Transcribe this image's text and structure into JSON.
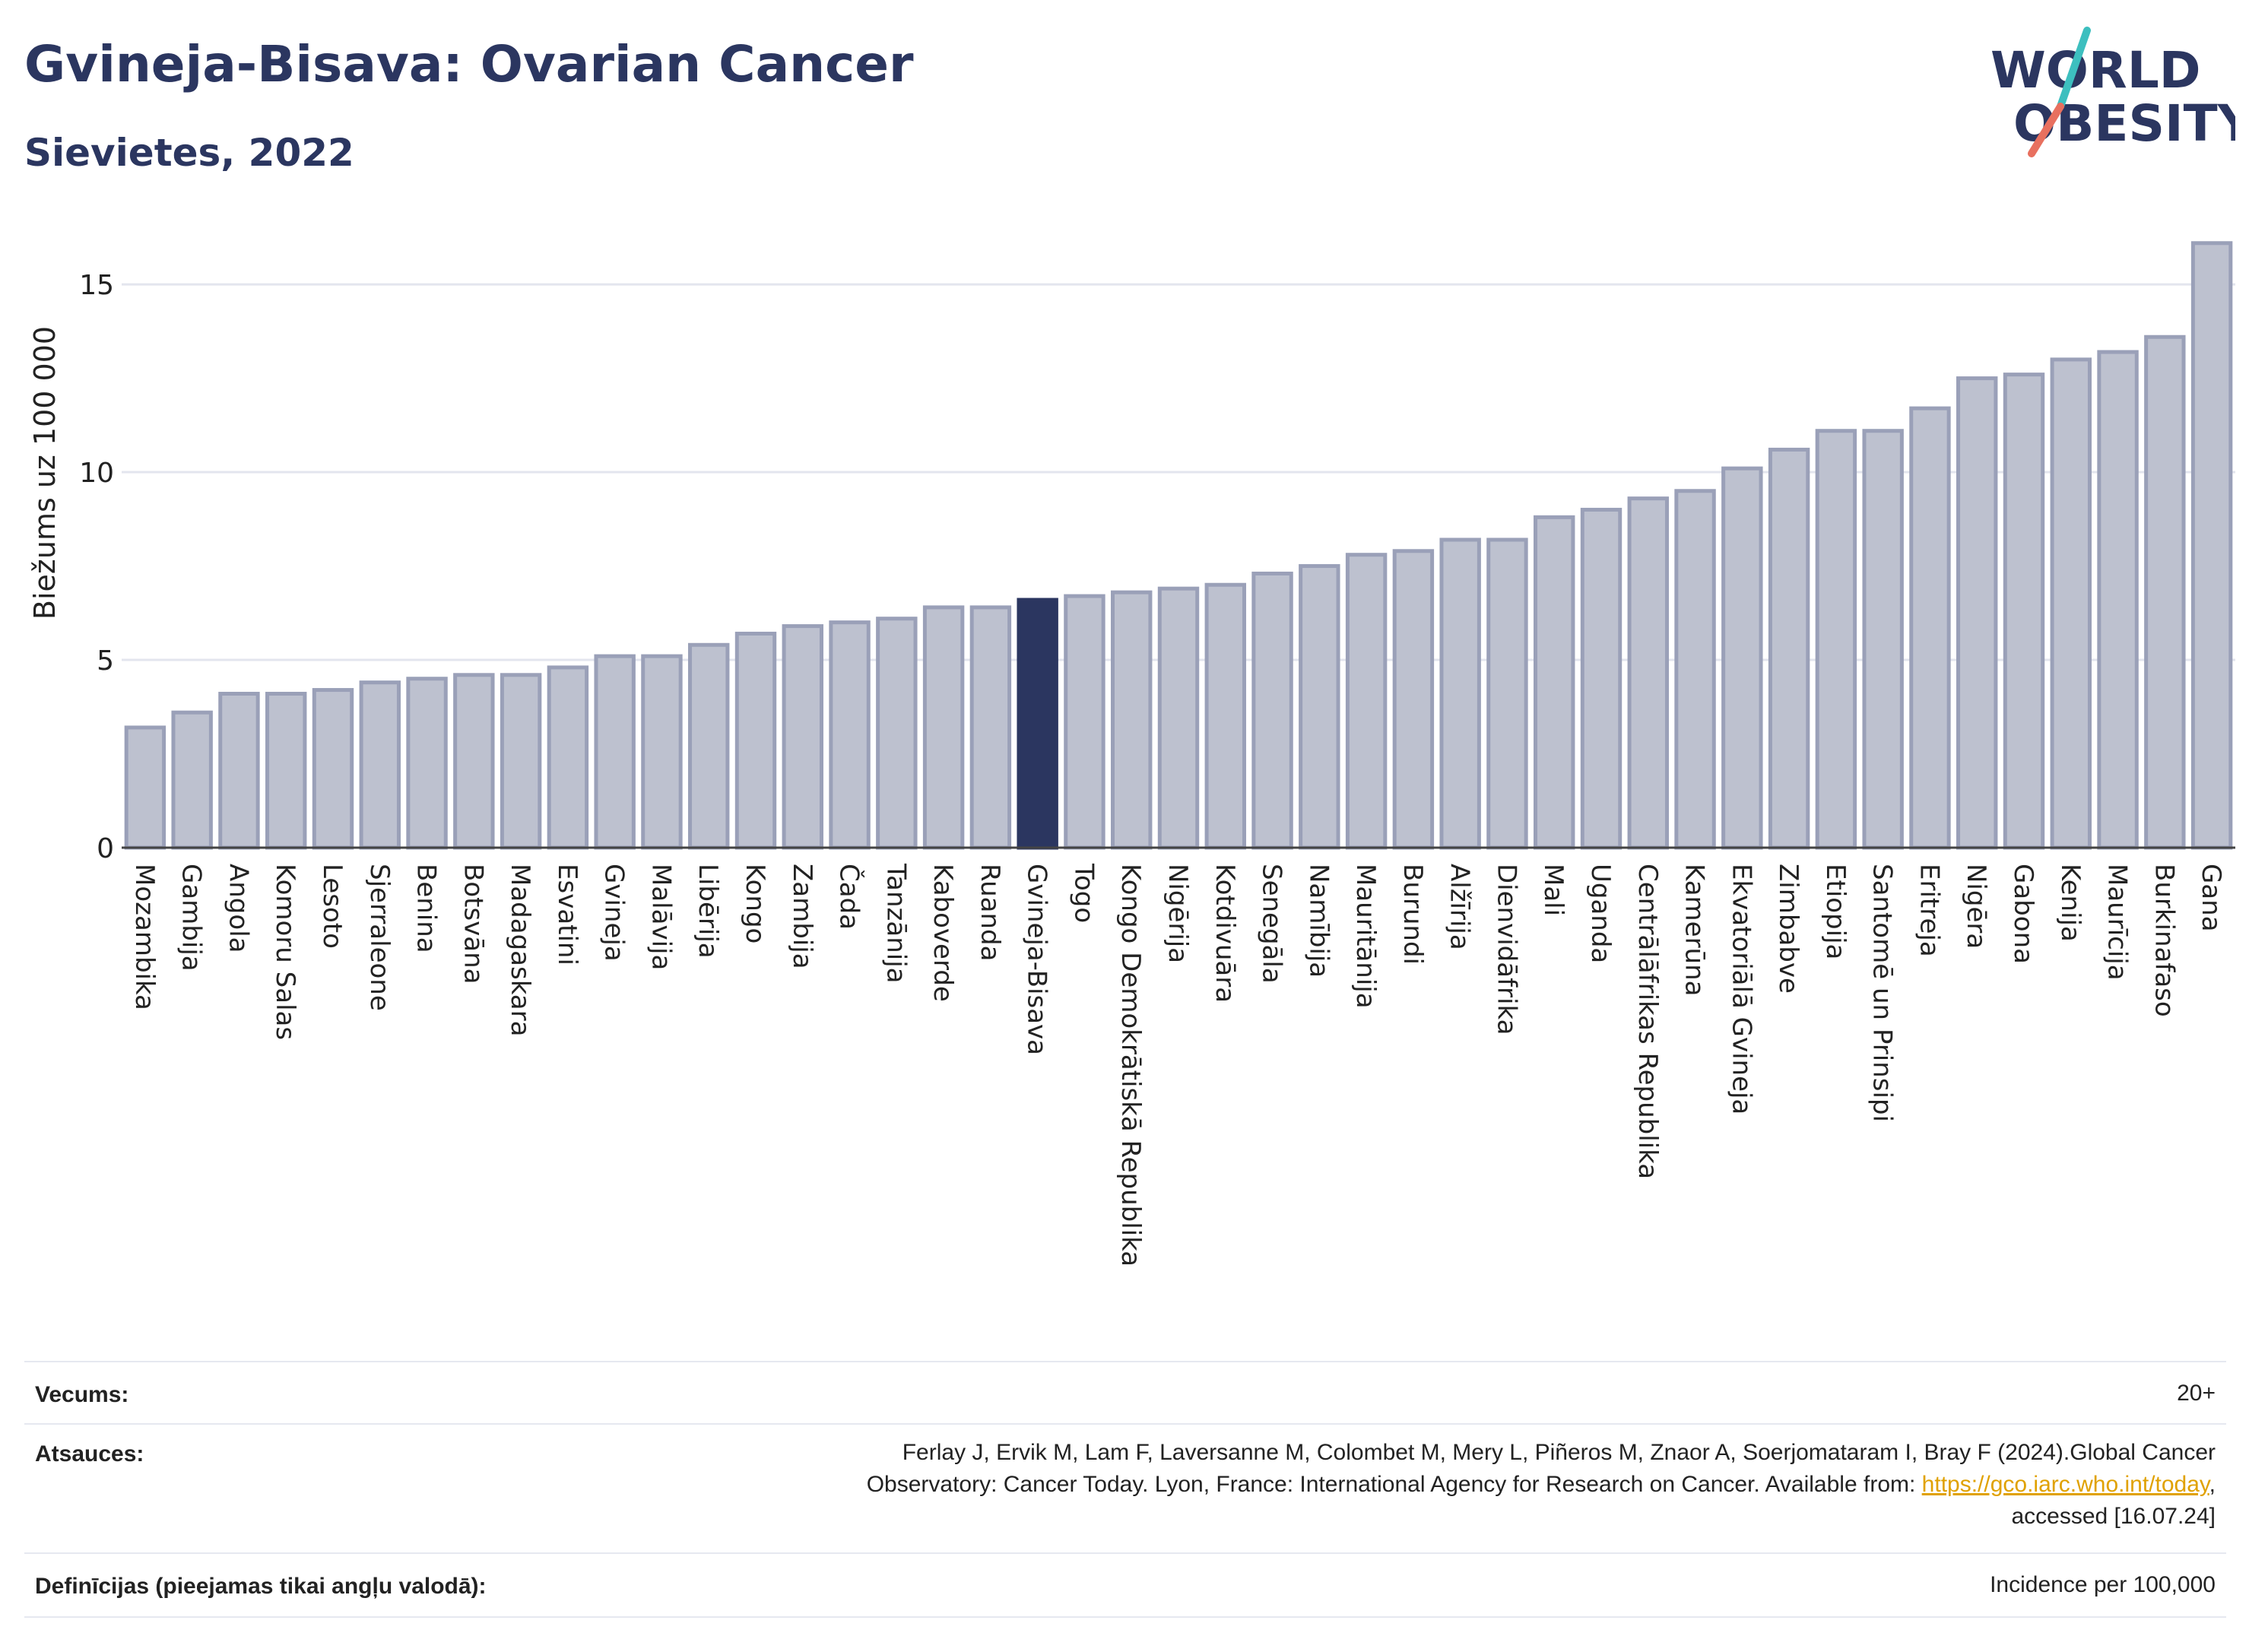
{
  "header": {
    "title": "Gvineja-Bisava: Ovarian Cancer",
    "subtitle": "Sievietes, 2022"
  },
  "logo": {
    "line1": "WORLD",
    "line2": "OBESITY",
    "colors": {
      "text": "#2b3660",
      "slash_teal": "#3dbfbf",
      "slash_coral": "#e8705f"
    }
  },
  "chart_data": {
    "type": "bar",
    "ylabel": "Biežums uz 100 000",
    "ylim": [
      0,
      16.5
    ],
    "yticks": [
      0,
      5,
      10,
      15
    ],
    "grid": true,
    "highlight": "Gvineja-Bisava",
    "colors": {
      "bar": "#bdc1cf",
      "bar_edge": "#9aa0b8",
      "highlight": "#2b3660"
    },
    "categories": [
      "Mozambika",
      "Gambija",
      "Angola",
      "Komoru Salas",
      "Lesoto",
      "Sjerraleone",
      "Benina",
      "Botsvāna",
      "Madagaskara",
      "Esvatini",
      "Gvineja",
      "Malāvija",
      "Libērija",
      "Kongo",
      "Zambija",
      "Čada",
      "Tanzānija",
      "Kaboverde",
      "Ruanda",
      "Gvineja-Bisava",
      "Togo",
      "Kongo Demokrātiskā Republika",
      "Nigērija",
      "Kotdivuāra",
      "Senegāla",
      "Namībija",
      "Mauritānija",
      "Burundi",
      "Alžīrija",
      "Dienvidāfrika",
      "Mali",
      "Uganda",
      "Centrālāfrikas Republika",
      "Kamerūna",
      "Ekvatoriālā Gvineja",
      "Zimbabve",
      "Etiopija",
      "Santomē un Prinsipi",
      "Eritreja",
      "Nigēra",
      "Gabona",
      "Kenija",
      "Maurīcija",
      "Burkinafaso",
      "Gana"
    ],
    "values": [
      3.2,
      3.6,
      4.1,
      4.1,
      4.2,
      4.4,
      4.5,
      4.6,
      4.6,
      4.8,
      5.1,
      5.1,
      5.4,
      5.7,
      5.9,
      6.0,
      6.1,
      6.4,
      6.4,
      6.6,
      6.7,
      6.8,
      6.9,
      7.0,
      7.3,
      7.5,
      7.8,
      7.9,
      8.2,
      8.2,
      8.8,
      9.0,
      9.3,
      9.5,
      10.1,
      10.6,
      11.1,
      11.1,
      11.7,
      12.5,
      12.6,
      13.0,
      13.2,
      13.6,
      16.1
    ]
  },
  "info": {
    "age_label": "Vecums:",
    "age_value": "20+",
    "refs_label": "Atsauces:",
    "refs_line1": "Ferlay J, Ervik M, Lam F, Laversanne M, Colombet M, Mery L, Piñeros M, Znaor A, Soerjomataram I, Bray F (2024).Global Cancer",
    "refs_line2_pre": "Observatory: Cancer Today. Lyon, France: International Agency for Research on Cancer. Available from: ",
    "refs_link": "https://gco.iarc.who.int/today",
    "refs_line2_post": ",",
    "refs_line3": "accessed [16.07.24]",
    "defs_label": "Definīcijas (pieejamas tikai angļu valodā):",
    "defs_value": "Incidence per 100,000"
  }
}
